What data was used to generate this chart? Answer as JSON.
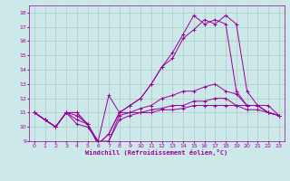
{
  "xlabel": "Windchill (Refroidissement éolien,°C)",
  "background_color": "#cce8e8",
  "grid_color": "#aacccc",
  "line_color": "#990099",
  "xlim": [
    -0.5,
    23.5
  ],
  "ylim": [
    9,
    18.5
  ],
  "xticks": [
    0,
    1,
    2,
    3,
    4,
    5,
    6,
    7,
    8,
    9,
    10,
    11,
    12,
    13,
    14,
    15,
    16,
    17,
    18,
    19,
    20,
    21,
    22,
    23
  ],
  "yticks": [
    9,
    10,
    11,
    12,
    13,
    14,
    15,
    16,
    17,
    18
  ],
  "lines": [
    {
      "x": [
        0,
        1,
        2,
        3,
        4,
        5,
        6,
        7,
        8,
        9,
        10,
        11,
        12,
        13,
        14,
        15,
        16,
        17,
        18,
        19,
        20,
        21,
        22,
        23
      ],
      "y": [
        11.0,
        10.5,
        10.0,
        11.0,
        11.0,
        10.2,
        8.8,
        9.5,
        11.0,
        11.5,
        12.0,
        13.0,
        14.2,
        14.8,
        16.2,
        16.8,
        17.5,
        17.2,
        17.8,
        17.2,
        12.5,
        11.5,
        11.5,
        10.8
      ]
    },
    {
      "x": [
        0,
        1,
        2,
        3,
        4,
        5,
        6,
        7,
        8,
        9,
        10,
        11,
        12,
        13,
        14,
        15,
        16,
        17,
        18,
        19,
        20,
        21,
        22,
        23
      ],
      "y": [
        11.0,
        10.5,
        10.0,
        11.0,
        11.0,
        10.2,
        8.8,
        9.5,
        11.0,
        11.5,
        12.0,
        13.0,
        14.2,
        15.2,
        16.5,
        17.8,
        17.2,
        17.5,
        17.2,
        12.5,
        11.5,
        11.5,
        11.0,
        10.8
      ]
    },
    {
      "x": [
        0,
        1,
        2,
        3,
        4,
        5,
        6,
        7,
        8,
        9,
        10,
        11,
        12,
        13,
        14,
        15,
        16,
        17,
        18,
        19,
        20,
        21,
        22,
        23
      ],
      "y": [
        11.0,
        10.5,
        10.0,
        11.0,
        10.8,
        10.2,
        9.0,
        12.2,
        11.0,
        11.0,
        11.3,
        11.5,
        12.0,
        12.2,
        12.5,
        12.5,
        12.8,
        13.0,
        12.5,
        12.3,
        11.5,
        11.5,
        11.0,
        10.8
      ]
    },
    {
      "x": [
        0,
        1,
        2,
        3,
        4,
        5,
        6,
        7,
        8,
        9,
        10,
        11,
        12,
        13,
        14,
        15,
        16,
        17,
        18,
        19,
        20,
        21,
        22,
        23
      ],
      "y": [
        11.0,
        10.5,
        10.0,
        11.0,
        10.5,
        10.2,
        8.8,
        9.0,
        10.8,
        11.0,
        11.0,
        11.2,
        11.3,
        11.5,
        11.5,
        11.8,
        11.8,
        12.0,
        12.0,
        11.5,
        11.5,
        11.5,
        11.0,
        10.8
      ]
    },
    {
      "x": [
        0,
        1,
        2,
        3,
        4,
        5,
        6,
        7,
        8,
        9,
        10,
        11,
        12,
        13,
        14,
        15,
        16,
        17,
        18,
        19,
        20,
        21,
        22,
        23
      ],
      "y": [
        11.0,
        10.5,
        10.0,
        11.0,
        10.2,
        10.0,
        9.0,
        9.0,
        10.5,
        10.8,
        11.0,
        11.0,
        11.2,
        11.2,
        11.3,
        11.5,
        11.5,
        11.5,
        11.5,
        11.5,
        11.2,
        11.2,
        11.0,
        10.8
      ]
    }
  ]
}
